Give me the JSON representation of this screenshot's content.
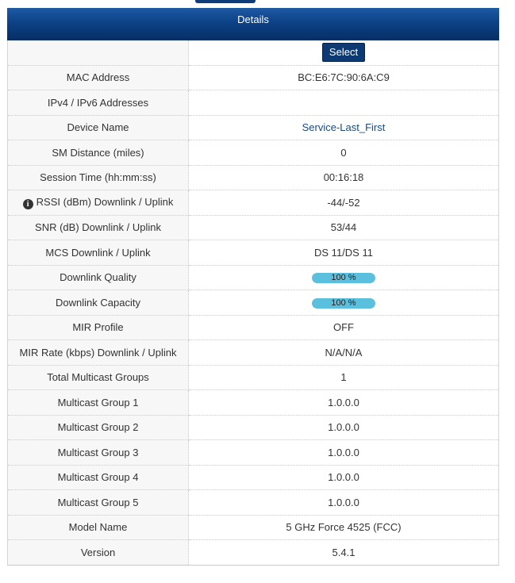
{
  "panel": {
    "title": "Details"
  },
  "select_button": "Select",
  "rows": {
    "mac": {
      "label": "MAC Address",
      "value": "BC:E6:7C:90:6A:C9"
    },
    "ip": {
      "label": "IPv4 / IPv6 Addresses",
      "value": ""
    },
    "device_name": {
      "label": "Device Name",
      "value": "Service-Last_First"
    },
    "sm_distance": {
      "label": "SM Distance (miles)",
      "value": "0"
    },
    "session_time": {
      "label": "Session Time (hh:mm:ss)",
      "value": "00:16:18"
    },
    "rssi": {
      "label": "RSSI (dBm) Downlink / Uplink",
      "value": "-44/-52",
      "icon": "info-icon"
    },
    "snr": {
      "label": "SNR (dB) Downlink / Uplink",
      "value": "53/44"
    },
    "mcs": {
      "label": "MCS Downlink / Uplink",
      "value": "DS 11/DS 11"
    },
    "downlink_quality": {
      "label": "Downlink Quality",
      "value": "100 %",
      "percent": 100
    },
    "downlink_capacity": {
      "label": "Downlink Capacity",
      "value": "100 %",
      "percent": 100
    },
    "mir_profile": {
      "label": "MIR Profile",
      "value": "OFF"
    },
    "mir_rate": {
      "label": "MIR Rate (kbps) Downlink / Uplink",
      "value": "N/A/N/A"
    },
    "total_multicast": {
      "label": "Total Multicast Groups",
      "value": "1"
    },
    "multicast_1": {
      "label": "Multicast Group 1",
      "value": "1.0.0.0"
    },
    "multicast_2": {
      "label": "Multicast Group 2",
      "value": "1.0.0.0"
    },
    "multicast_3": {
      "label": "Multicast Group 3",
      "value": "1.0.0.0"
    },
    "multicast_4": {
      "label": "Multicast Group 4",
      "value": "1.0.0.0"
    },
    "multicast_5": {
      "label": "Multicast Group 5",
      "value": "1.0.0.0"
    },
    "model_name": {
      "label": "Model Name",
      "value": "5 GHz Force 4525 (FCC)"
    },
    "version": {
      "label": "Version",
      "value": "5.4.1"
    }
  },
  "colors": {
    "header": "#0d4287",
    "progress": "#5bc0de",
    "button": "#0d3a73"
  }
}
